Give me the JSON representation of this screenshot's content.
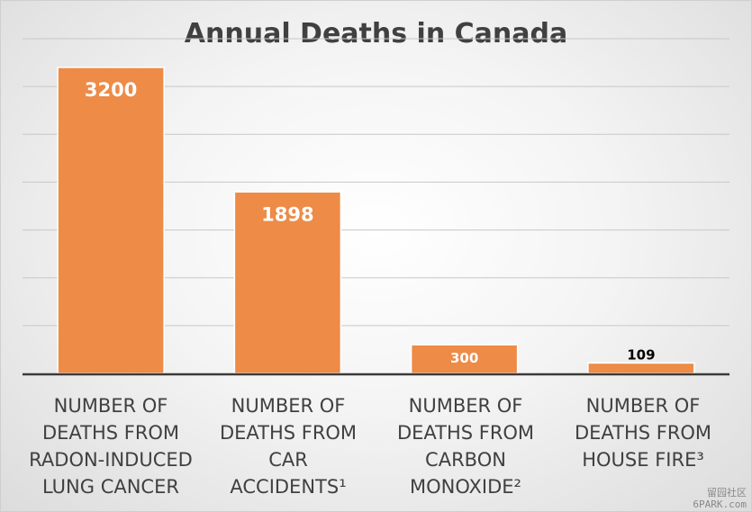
{
  "chart_data": {
    "type": "bar",
    "title": "Annual Deaths in Canada",
    "categories": [
      "NUMBER OF\nDEATHS FROM\nRADON-INDUCED\nLUNG CANCER",
      "NUMBER OF\nDEATHS FROM CAR\nACCIDENTS¹",
      "NUMBER OF\nDEATHS FROM\nCARBON\nMONOXIDE²",
      "NUMBER OF\nDEATHS FROM\nHOUSE FIRE³"
    ],
    "values": [
      3200,
      1898,
      300,
      109
    ],
    "data_labels": [
      "3200",
      "1898",
      "300",
      "109"
    ],
    "xlabel": "",
    "ylabel": "",
    "ylim": [
      0,
      3500
    ],
    "grid": true,
    "legend": "none",
    "bar_color": "#ED8B47",
    "bar_border_color": "#ffffff"
  },
  "watermark": {
    "line1": "留园社区",
    "line2": "6PARK.com"
  }
}
